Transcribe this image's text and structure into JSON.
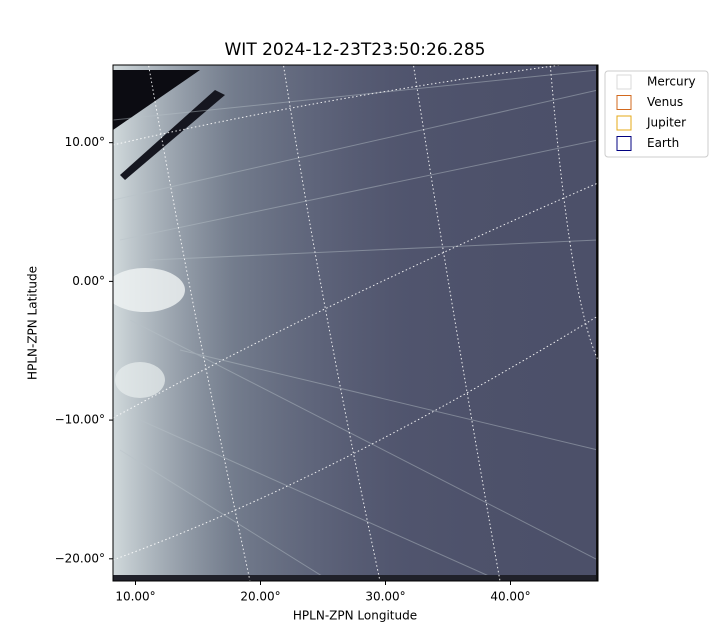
{
  "chart_data": {
    "type": "image",
    "title": "WIT 2024-12-23T23:50:26.285",
    "xlabel": "HPLN-ZPN Longitude",
    "ylabel": "HPLN-ZPN Latitude",
    "xlim": [
      8.2,
      47
    ],
    "ylim": [
      -21.6,
      15.6
    ],
    "xticks": [
      {
        "value": 10,
        "label": "10.00°"
      },
      {
        "value": 20,
        "label": "20.00°"
      },
      {
        "value": 30,
        "label": "30.00°"
      },
      {
        "value": 40,
        "label": "40.00°"
      }
    ],
    "yticks": [
      {
        "value": 10,
        "label": "10.00°"
      },
      {
        "value": 0,
        "label": "0.00°"
      },
      {
        "value": -10,
        "label": "−10.00°"
      },
      {
        "value": -20,
        "label": "−20.00°"
      }
    ],
    "legend": {
      "position": "outside upper right",
      "entries": [
        {
          "name": "Mercury",
          "color": "#d9d9d9"
        },
        {
          "name": "Venus",
          "color": "#d2691e"
        },
        {
          "name": "Jupiter",
          "color": "#e6a817"
        },
        {
          "name": "Earth",
          "color": "#000080"
        }
      ]
    }
  }
}
